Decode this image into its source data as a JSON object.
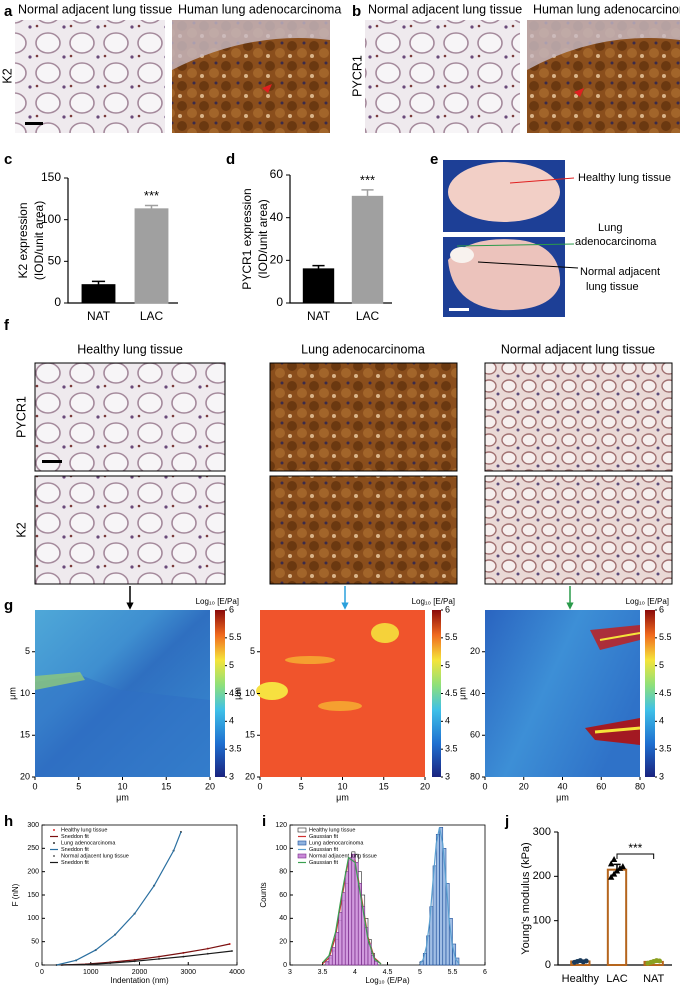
{
  "panel_labels": [
    "a",
    "b",
    "c",
    "d",
    "e",
    "f",
    "g",
    "h",
    "i",
    "j"
  ],
  "a": {
    "titles": [
      "Normal adjacent lung tissue",
      "Human lung adenocarcinoma"
    ],
    "stain": "K2"
  },
  "b": {
    "titles": [
      "Normal adjacent lung tissue",
      "Human lung adenocarcinoma"
    ],
    "stain": "PYCR1"
  },
  "e": {
    "labels": [
      "Healthy lung tissue",
      "Lung",
      "adenocarcinoma",
      "Normal adjacent",
      "lung tissue"
    ]
  },
  "f": {
    "columns": [
      "Healthy lung tissue",
      "Lung adenocarcinoma",
      "Normal adjacent lung tissue"
    ],
    "rows": [
      "PYCR1",
      "K2"
    ]
  },
  "g": {
    "maps": [
      {
        "xlim": [
          0,
          20
        ],
        "xticks": [
          0,
          5,
          10,
          15,
          20
        ],
        "ylim": [
          0,
          20
        ],
        "yticks": [
          5,
          10,
          15,
          20
        ],
        "xlabel": "μm",
        "ylabel": "μm"
      },
      {
        "xlim": [
          0,
          20
        ],
        "xticks": [
          0,
          5,
          10,
          15,
          20
        ],
        "ylim": [
          0,
          20
        ],
        "yticks": [
          5,
          10,
          15,
          20
        ],
        "xlabel": "μm",
        "ylabel": "μm"
      },
      {
        "xlim": [
          0,
          80
        ],
        "xticks": [
          0,
          20,
          40,
          60,
          80
        ],
        "ylim": [
          0,
          80
        ],
        "yticks": [
          20,
          40,
          60,
          80
        ],
        "xlabel": "μm",
        "ylabel": "μm"
      }
    ],
    "colorbar": {
      "label": "Log₁₀ [E/Pa]",
      "lim": [
        3,
        6
      ],
      "ticks": [
        3,
        3.5,
        4,
        4.5,
        5,
        5.5,
        6
      ]
    }
  },
  "chart_data": [
    {
      "type": "bar",
      "ylabel": [
        "K2 expression",
        "(IOD/unit area)"
      ],
      "categories": [
        "NAT",
        "LAC"
      ],
      "values": [
        22,
        113
      ],
      "errors": [
        4,
        4
      ],
      "colors": [
        "#000000",
        "#a0a0a0"
      ],
      "ylim": [
        0,
        150
      ],
      "yticks": [
        0,
        50,
        100,
        150
      ],
      "annotations": [
        "***"
      ]
    },
    {
      "type": "bar",
      "ylabel": [
        "PYCR1 expression",
        "(IOD/unit area)"
      ],
      "categories": [
        "NAT",
        "LAC"
      ],
      "values": [
        16,
        50
      ],
      "errors": [
        1.5,
        3
      ],
      "colors": [
        "#000000",
        "#a0a0a0"
      ],
      "ylim": [
        0,
        60
      ],
      "yticks": [
        0,
        20,
        40,
        60
      ],
      "annotations": [
        "***"
      ]
    },
    {
      "type": "line",
      "xlabel": "Indentation (nm)",
      "ylabel": "F (nN)",
      "xlim": [
        0,
        4000
      ],
      "xticks": [
        0,
        1000,
        2000,
        3000,
        4000
      ],
      "ylim": [
        0,
        300
      ],
      "yticks": [
        0,
        50,
        100,
        150,
        200,
        250,
        300
      ],
      "series": [
        {
          "name": "Healthy lung tissue",
          "style": "points",
          "color": "#e03030",
          "x": [
            400,
            900,
            1400,
            1900,
            2400,
            2900,
            3400,
            3850
          ],
          "values": [
            0,
            2,
            6,
            11,
            18,
            26,
            35,
            45
          ]
        },
        {
          "name": "Sneddon fit",
          "style": "line",
          "color": "#7a1010",
          "x": [
            400,
            900,
            1400,
            1900,
            2400,
            2900,
            3400,
            3850
          ],
          "values": [
            0,
            2,
            6,
            11,
            18,
            26,
            35,
            45
          ]
        },
        {
          "name": "Lung adenocarcinoma",
          "style": "points",
          "color": "#333333",
          "x": [
            300,
            700,
            1100,
            1500,
            1900,
            2300,
            2700,
            2850
          ],
          "values": [
            0,
            10,
            32,
            65,
            110,
            170,
            245,
            285
          ]
        },
        {
          "name": "Sneddon fit",
          "style": "line",
          "color": "#2a6fa0",
          "x": [
            300,
            700,
            1100,
            1500,
            1900,
            2300,
            2700,
            2850
          ],
          "values": [
            0,
            10,
            32,
            65,
            110,
            170,
            245,
            285
          ]
        },
        {
          "name": "Normal adjacent lung tissue",
          "style": "points",
          "color": "#666666",
          "x": [
            400,
            900,
            1400,
            1900,
            2400,
            2900,
            3400,
            3900
          ],
          "values": [
            0,
            1,
            4,
            8,
            13,
            18,
            24,
            30
          ]
        },
        {
          "name": "Sneddon fit",
          "style": "line",
          "color": "#1a1a1a",
          "x": [
            400,
            900,
            1400,
            1900,
            2400,
            2900,
            3400,
            3900
          ],
          "values": [
            0,
            1,
            4,
            8,
            13,
            18,
            24,
            30
          ]
        }
      ]
    },
    {
      "type": "histogram",
      "xlabel": "Log₁₀ (E/Pa)",
      "ylabel": "Counts",
      "xlim": [
        3,
        6
      ],
      "xticks": [
        3,
        3.5,
        4,
        4.5,
        5,
        5.5,
        6
      ],
      "ylim": [
        0,
        120
      ],
      "yticks": [
        0,
        20,
        40,
        60,
        80,
        100,
        120
      ],
      "series": [
        {
          "name": "Healthy lung tissue",
          "color": "#222222",
          "fill": "none",
          "bins": [
            3.55,
            3.6,
            3.65,
            3.7,
            3.75,
            3.8,
            3.85,
            3.9,
            3.95,
            4.0,
            4.05,
            4.1,
            4.15,
            4.2,
            4.25,
            4.3,
            4.35
          ],
          "values": [
            2,
            6,
            12,
            22,
            38,
            55,
            70,
            90,
            97,
            95,
            80,
            60,
            40,
            22,
            10,
            4
          ]
        },
        {
          "name": "Gaussian fit",
          "color": "#d03030",
          "x": [
            3.5,
            3.6,
            3.7,
            3.8,
            3.9,
            4.0,
            4.1,
            4.2,
            4.3,
            4.4
          ],
          "values": [
            1,
            6,
            24,
            58,
            90,
            90,
            58,
            24,
            6,
            1
          ]
        },
        {
          "name": "Lung adenocarcinoma",
          "color": "#1f4f9a",
          "fill": "#8fb3e0",
          "bins": [
            5.0,
            5.05,
            5.1,
            5.15,
            5.2,
            5.25,
            5.3,
            5.35,
            5.4,
            5.45,
            5.5,
            5.55,
            5.6
          ],
          "values": [
            3,
            10,
            25,
            50,
            85,
            112,
            118,
            100,
            70,
            40,
            18,
            6
          ]
        },
        {
          "name": "Gaussian fit",
          "color": "#5a9fd0",
          "x": [
            5.0,
            5.05,
            5.1,
            5.15,
            5.2,
            5.25,
            5.3,
            5.35,
            5.4,
            5.45,
            5.5,
            5.55,
            5.6
          ],
          "values": [
            1,
            5,
            16,
            38,
            72,
            104,
            118,
            104,
            72,
            38,
            16,
            5,
            1
          ]
        },
        {
          "name": "Normal adjacent lung tissue",
          "color": "#7a2a8a",
          "fill": "#c98ad8",
          "bins": [
            3.55,
            3.6,
            3.65,
            3.7,
            3.75,
            3.8,
            3.85,
            3.9,
            3.95,
            4.0,
            4.05,
            4.1,
            4.15,
            4.2,
            4.25,
            4.3,
            4.35
          ],
          "values": [
            3,
            8,
            15,
            28,
            45,
            62,
            80,
            92,
            95,
            88,
            70,
            50,
            32,
            18,
            8,
            3
          ]
        },
        {
          "name": "Gaussian fit",
          "color": "#3aa050",
          "x": [
            3.5,
            3.6,
            3.7,
            3.8,
            3.9,
            4.0,
            4.1,
            4.2,
            4.3,
            4.4
          ],
          "values": [
            2,
            8,
            28,
            62,
            92,
            88,
            55,
            22,
            5,
            1
          ]
        }
      ]
    },
    {
      "type": "bar",
      "ylabel": "Young's modulus (kPa)",
      "categories": [
        "Healthy",
        "LAC",
        "NAT"
      ],
      "values": [
        8,
        215,
        7
      ],
      "errors": [
        2,
        12,
        2
      ],
      "color": "#b5651d",
      "points": [
        [
          6,
          8,
          10,
          7,
          9
        ],
        [
          198,
          205,
          212,
          218,
          222,
          228,
          238
        ],
        [
          4,
          6,
          8,
          10,
          9
        ]
      ],
      "point_colors": [
        "#1a3a5a",
        "#000000",
        "#8aa020"
      ],
      "ylim": [
        0,
        300
      ],
      "yticks": [
        0,
        100,
        200,
        300
      ],
      "annotations": [
        "***"
      ]
    }
  ]
}
